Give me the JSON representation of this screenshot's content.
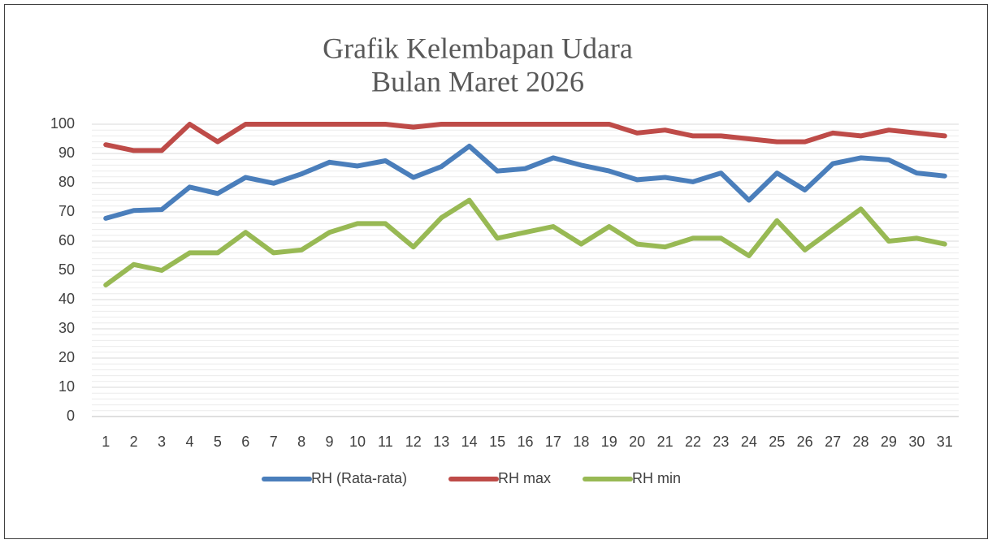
{
  "chart_data": {
    "type": "line",
    "title": [
      "Grafik Kelembapan Udara",
      "Bulan Maret 2026"
    ],
    "categories": [
      "1",
      "2",
      "3",
      "4",
      "5",
      "6",
      "7",
      "8",
      "9",
      "10",
      "11",
      "12",
      "13",
      "14",
      "15",
      "16",
      "17",
      "18",
      "19",
      "20",
      "21",
      "22",
      "23",
      "24",
      "25",
      "26",
      "27",
      "28",
      "29",
      "30",
      "31"
    ],
    "series": [
      {
        "name": "RH (Rata-rata)",
        "color": "#4a7ebb",
        "values": [
          67.8,
          70.5,
          70.8,
          78.5,
          76.3,
          81.8,
          79.8,
          83,
          87,
          85.7,
          87.5,
          81.8,
          85.5,
          92.5,
          84,
          84.8,
          88.5,
          86,
          84,
          81,
          81.8,
          80.3,
          83.3,
          74,
          83.3,
          77.5,
          86.5,
          88.5,
          87.8,
          83.3,
          82.3
        ]
      },
      {
        "name": "RH max",
        "color": "#be4b48",
        "values": [
          93,
          91,
          91,
          100,
          94,
          100,
          100,
          100,
          100,
          100,
          100,
          99,
          100,
          100,
          100,
          100,
          100,
          100,
          100,
          97,
          98,
          96,
          96,
          95,
          94,
          94,
          97,
          96,
          98,
          97,
          96
        ]
      },
      {
        "name": "RH min",
        "color": "#98b954",
        "values": [
          45,
          52,
          50,
          56,
          56,
          63,
          56,
          57,
          63,
          66,
          66,
          58,
          68,
          74,
          61,
          63,
          65,
          59,
          65,
          59,
          58,
          61,
          61,
          55,
          67,
          57,
          64,
          71,
          60,
          61,
          59
        ]
      }
    ],
    "ylim": [
      0,
      100
    ],
    "yticks": [
      0,
      10,
      20,
      30,
      40,
      50,
      60,
      70,
      80,
      90,
      100
    ],
    "grid": true,
    "legend": "bottom"
  }
}
